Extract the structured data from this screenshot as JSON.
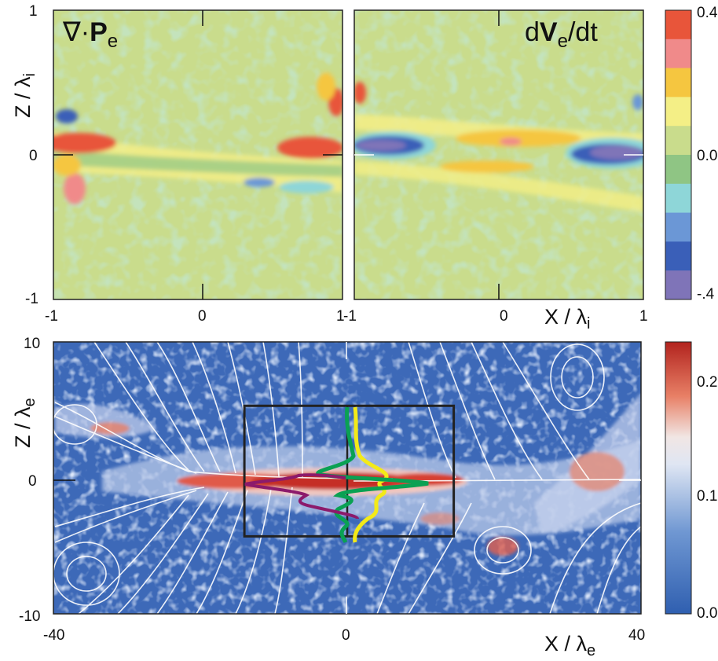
{
  "chart_data": [
    {
      "type": "heatmap",
      "panel": "top-left",
      "title": "∇·Pe",
      "title_parts": [
        "∇·",
        "P",
        "e"
      ],
      "xlabel": "",
      "ylabel": "Z / λi",
      "ylabel_parts": [
        "Z / λ",
        "i"
      ],
      "xlim": [
        -1,
        1
      ],
      "ylim": [
        -1,
        1
      ],
      "xticks": [
        "-1",
        "0",
        "1"
      ],
      "yticks": [
        "1",
        "0",
        "-1"
      ],
      "colorbar": {
        "min": -0.4,
        "max": 0.4,
        "ticks": [
          "0.4",
          "0.0",
          "-.4"
        ],
        "levels": [
          "#e8553a",
          "#f08a8a",
          "#f5c640",
          "#f4ef86",
          "#c9dc8c",
          "#8fc584",
          "#8ed6d8",
          "#6b97d6",
          "#3a5fb8",
          "#7f74b8"
        ]
      },
      "features": [
        {
          "x": -0.88,
          "z": 0.08,
          "value": 0.4
        },
        {
          "x": 0.75,
          "z": 0.05,
          "value": 0.4
        },
        {
          "x": -0.85,
          "z": -0.1,
          "value": 0.28
        },
        {
          "x": 0.5,
          "z": -0.15,
          "value": -0.24
        },
        {
          "x": -0.9,
          "z": 0.3,
          "value": -0.32
        }
      ]
    },
    {
      "type": "heatmap",
      "panel": "top-right",
      "title": "dVe/dt",
      "title_parts": [
        "d",
        "V",
        "e",
        "/dt"
      ],
      "xlabel": "X / λi",
      "xlabel_parts": [
        "X / λ",
        "i"
      ],
      "xlim": [
        -1,
        1
      ],
      "ylim": [
        -1,
        1
      ],
      "xticks": [
        "-1",
        "0",
        "1"
      ],
      "features": [
        {
          "x": -0.85,
          "z": 0.08,
          "value": -0.4
        },
        {
          "x": 0.8,
          "z": 0.02,
          "value": -0.4
        },
        {
          "x": -0.1,
          "z": 0.12,
          "value": 0.24
        },
        {
          "x": 0.2,
          "z": -0.1,
          "value": 0.2
        },
        {
          "x": 0.5,
          "z": 0.15,
          "value": 0.16
        }
      ]
    },
    {
      "type": "heatmap",
      "panel": "bottom",
      "xlabel": "X / λe",
      "xlabel_parts": [
        "X / λ",
        "e"
      ],
      "ylabel": "Z / λe",
      "ylabel_parts": [
        "Z / λ",
        "e"
      ],
      "xlim": [
        -40,
        40
      ],
      "ylim": [
        -10,
        10
      ],
      "xticks": [
        "-40",
        "0",
        "40"
      ],
      "yticks": [
        "10",
        "0",
        "-10"
      ],
      "colorbar": {
        "min": 0.0,
        "max": 0.24,
        "ticks": [
          "0.2",
          "0.1",
          "0.0"
        ],
        "colors": [
          "#2f5fb0",
          "#6f97d2",
          "#f1eef0",
          "#e88066",
          "#b2231e"
        ]
      },
      "box": {
        "x": [
          -14,
          14.5
        ],
        "z": [
          -4.3,
          5.3
        ]
      },
      "overlay_colors": {
        "yellow": "#f3ea18",
        "green": "#0aa153",
        "purple": "#8c1a6b"
      }
    }
  ]
}
